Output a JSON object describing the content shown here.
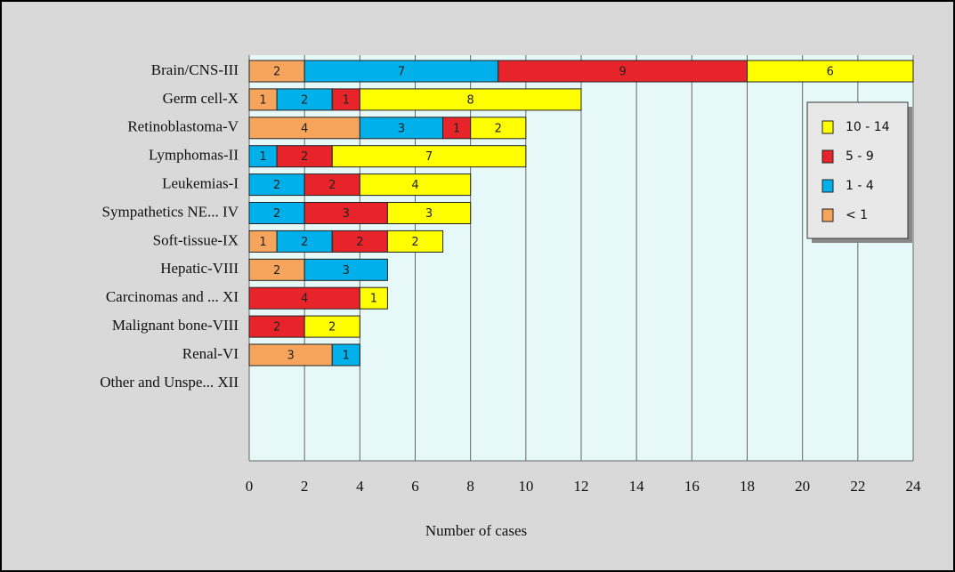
{
  "chart_data": {
    "type": "stacked_bar_horizontal",
    "x_label": "Number of cases",
    "categories": [
      "Brain/CNS-III",
      "Germ cell-X",
      "Retinoblastoma-V",
      "Lymphomas-II",
      "Leukemias-I",
      "Sympathetics NE... IV",
      "Soft-tissue-IX",
      "Hepatic-VIII",
      "Carcinomas and ... XI",
      "Malignant bone-VIII",
      "Renal-VI",
      "Other and Unspe... XII"
    ],
    "series": [
      {
        "name": "< 1",
        "color": "#f7a45c",
        "values": [
          2,
          1,
          4,
          null,
          null,
          null,
          1,
          2,
          null,
          null,
          3,
          null
        ]
      },
      {
        "name": "1 - 4",
        "color": "#00b0ea",
        "values": [
          7,
          2,
          3,
          1,
          2,
          2,
          2,
          3,
          null,
          null,
          1,
          null
        ]
      },
      {
        "name": "5 - 9",
        "color": "#e8242b",
        "values": [
          9,
          1,
          1,
          2,
          2,
          3,
          2,
          null,
          4,
          2,
          null,
          null
        ]
      },
      {
        "name": "10 - 14",
        "color": "#ffff00",
        "values": [
          6,
          8,
          2,
          7,
          4,
          3,
          2,
          null,
          1,
          2,
          null,
          null
        ]
      }
    ],
    "xlim": [
      0,
      24
    ],
    "xticks": [
      0,
      2,
      4,
      6,
      8,
      10,
      12,
      14,
      16,
      18,
      20,
      22,
      24
    ],
    "grid": true,
    "legend": "upper right"
  }
}
